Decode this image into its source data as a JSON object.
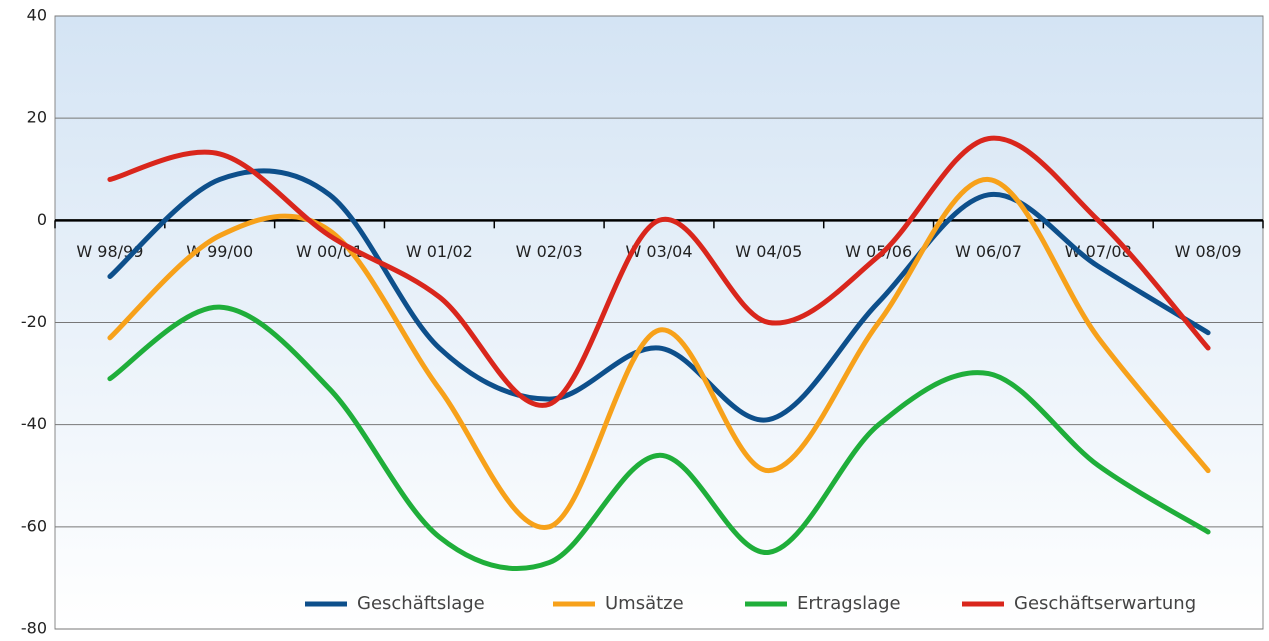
{
  "chart_data": {
    "type": "line",
    "categories": [
      "W 98/99",
      "W 99/00",
      "W 00/01",
      "W 01/02",
      "W 02/03",
      "W 03/04",
      "W 04/05",
      "W 05/06",
      "W 06/07",
      "W 07/08",
      "W 08/09"
    ],
    "series": [
      {
        "name": "Geschäftslage",
        "color": "#0d4f8b",
        "values": [
          -11,
          8,
          5,
          -25,
          -35,
          -25,
          -39,
          -16,
          5,
          -9,
          -22
        ]
      },
      {
        "name": "Umsätze",
        "color": "#f7a11a",
        "values": [
          -23,
          -3,
          -2,
          -33,
          -60,
          -21.5,
          -49,
          -20,
          8,
          -23,
          -49
        ]
      },
      {
        "name": "Ertragslage",
        "color": "#1fae3a",
        "values": [
          -31,
          -17,
          -33,
          -62,
          -67,
          -46,
          -65,
          -40,
          -30,
          -48,
          -61
        ]
      },
      {
        "name": "Geschäftserwartung",
        "color": "#d9261c",
        "values": [
          8,
          13,
          -3,
          -15,
          -36,
          0,
          -20,
          -7,
          16,
          0,
          -25
        ]
      }
    ],
    "ylim": [
      -80,
      40
    ],
    "yticks": [
      -80,
      -60,
      -40,
      -20,
      0,
      20,
      40
    ],
    "grid": true,
    "legend": "bottom"
  }
}
